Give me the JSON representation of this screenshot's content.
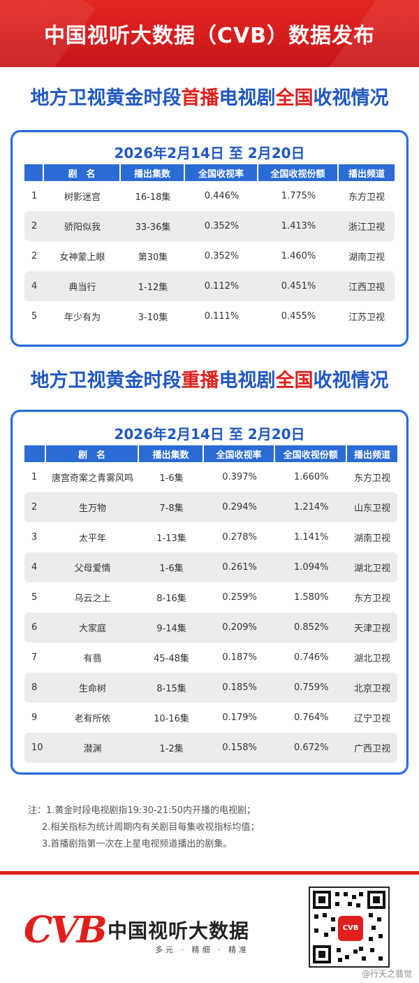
{
  "banner": {
    "title": "中国视听大数据（CVB）数据发布"
  },
  "section1": {
    "title_parts": [
      "地方卫视黄金时段",
      "首播",
      "电视剧",
      "全国",
      "收视情况"
    ],
    "date": "2026年2月14日 至 2月20日",
    "headers": [
      "",
      "剧　名",
      "播出集数",
      "全国收视率",
      "全国收视份额",
      "播出频道"
    ],
    "rows": [
      [
        "1",
        "树影迷宫",
        "16-18集",
        "0.446%",
        "1.775%",
        "东方卫视"
      ],
      [
        "2",
        "骄阳似我",
        "33-36集",
        "0.352%",
        "1.413%",
        "浙江卫视"
      ],
      [
        "2",
        "女神蒙上眼",
        "第30集",
        "0.352%",
        "1.460%",
        "湖南卫视"
      ],
      [
        "4",
        "典当行",
        "1-12集",
        "0.112%",
        "0.451%",
        "江西卫视"
      ],
      [
        "5",
        "年少有为",
        "3-10集",
        "0.111%",
        "0.455%",
        "江苏卫视"
      ]
    ]
  },
  "section2": {
    "title_parts": [
      "地方卫视黄金时段",
      "重播",
      "电视剧",
      "全国",
      "收视情况"
    ],
    "date": "2026年2月14日 至 2月20日",
    "headers": [
      "",
      "剧　名",
      "播出集数",
      "全国收视率",
      "全国收视份额",
      "播出频道"
    ],
    "rows": [
      [
        "1",
        "唐宫奇案之青雾风鸣",
        "1-6集",
        "0.397%",
        "1.660%",
        "东方卫视"
      ],
      [
        "2",
        "生万物",
        "7-8集",
        "0.294%",
        "1.214%",
        "山东卫视"
      ],
      [
        "3",
        "太平年",
        "1-13集",
        "0.278%",
        "1.141%",
        "湖南卫视"
      ],
      [
        "4",
        "父母爱情",
        "1-6集",
        "0.261%",
        "1.094%",
        "湖北卫视"
      ],
      [
        "5",
        "乌云之上",
        "8-16集",
        "0.259%",
        "1.580%",
        "东方卫视"
      ],
      [
        "6",
        "大家庭",
        "9-14集",
        "0.209%",
        "0.852%",
        "天津卫视"
      ],
      [
        "7",
        "有翡",
        "45-48集",
        "0.187%",
        "0.746%",
        "湖北卫视"
      ],
      [
        "8",
        "生命树",
        "8-15集",
        "0.185%",
        "0.759%",
        "北京卫视"
      ],
      [
        "9",
        "老有所依",
        "10-16集",
        "0.179%",
        "0.764%",
        "辽宁卫视"
      ],
      [
        "10",
        "潜渊",
        "1-2集",
        "0.158%",
        "0.672%",
        "广西卫视"
      ]
    ]
  },
  "notes": {
    "line1": "注：1.黄金时段电视剧指19:30-21:50内开播的电视剧；",
    "line2": "2.相关指标为统计周期内有关剧目每集收视指标均值；",
    "line3": "3.首播剧指第一次在上星电视频道播出的剧集。"
  },
  "logo": {
    "mark": "CVB",
    "name": "中国视听大数据",
    "slogan": "多元 · 精细 · 精准"
  },
  "qr": {
    "badge": "CVB"
  },
  "watermark": "@行天之翡觉",
  "colors": {
    "brand_red": "#e01f1c",
    "brand_blue": "#2a6bd6",
    "title_blue": "#1f57c3"
  }
}
